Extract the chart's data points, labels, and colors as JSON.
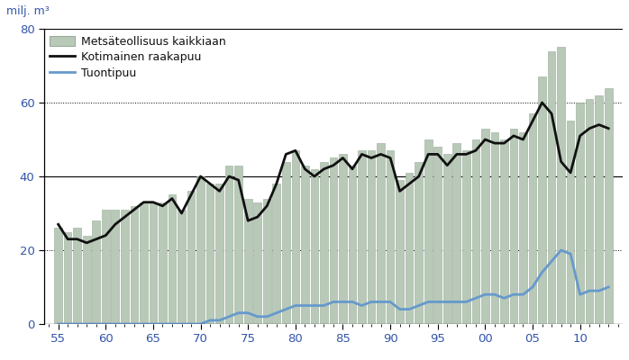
{
  "years": [
    1955,
    1956,
    1957,
    1958,
    1959,
    1960,
    1961,
    1962,
    1963,
    1964,
    1965,
    1966,
    1967,
    1968,
    1969,
    1970,
    1971,
    1972,
    1973,
    1974,
    1975,
    1976,
    1977,
    1978,
    1979,
    1980,
    1981,
    1982,
    1983,
    1984,
    1985,
    1986,
    1987,
    1988,
    1989,
    1990,
    1991,
    1992,
    1993,
    1994,
    1995,
    1996,
    1997,
    1998,
    1999,
    2000,
    2001,
    2002,
    2003,
    2004,
    2005,
    2006,
    2007,
    2008,
    2009,
    2010,
    2011,
    2012,
    2013
  ],
  "bars": [
    26,
    25,
    26,
    24,
    28,
    31,
    31,
    31,
    32,
    33,
    33,
    33,
    35,
    31,
    36,
    40,
    38,
    38,
    43,
    43,
    34,
    33,
    34,
    38,
    44,
    47,
    43,
    42,
    44,
    45,
    46,
    43,
    47,
    47,
    49,
    47,
    39,
    41,
    44,
    50,
    48,
    46,
    49,
    47,
    50,
    53,
    52,
    50,
    53,
    52,
    57,
    67,
    74,
    75,
    55,
    60,
    61,
    62,
    64
  ],
  "kotimainen": [
    27,
    23,
    23,
    22,
    23,
    24,
    27,
    29,
    31,
    33,
    33,
    32,
    34,
    30,
    35,
    40,
    38,
    36,
    40,
    39,
    28,
    29,
    32,
    38,
    46,
    47,
    42,
    40,
    42,
    43,
    45,
    42,
    46,
    45,
    46,
    45,
    36,
    38,
    40,
    46,
    46,
    43,
    46,
    46,
    47,
    50,
    49,
    49,
    51,
    50,
    55,
    60,
    57,
    44,
    41,
    51,
    53,
    54,
    53
  ],
  "tuontipuu": [
    0,
    0,
    0,
    0,
    0,
    0,
    0,
    0,
    0,
    0,
    0,
    0,
    0,
    0,
    0,
    0,
    1,
    1,
    2,
    3,
    3,
    2,
    2,
    3,
    4,
    5,
    5,
    5,
    5,
    6,
    6,
    6,
    5,
    6,
    6,
    6,
    4,
    4,
    5,
    6,
    6,
    6,
    6,
    6,
    7,
    8,
    8,
    7,
    8,
    8,
    10,
    14,
    17,
    20,
    19,
    8,
    9,
    9,
    10
  ],
  "bar_color": "#b8c9b8",
  "bar_edge_color": "#9aaa9a",
  "kotimainen_color": "#111111",
  "tuontipuu_color": "#6699cc",
  "ylabel": "milj. m³",
  "ylim": [
    0,
    80
  ],
  "yticks": [
    0,
    20,
    40,
    60,
    80
  ],
  "xtick_labels": [
    "55",
    "60",
    "65",
    "70",
    "75",
    "80",
    "85",
    "90",
    "95",
    "00",
    "05",
    "10"
  ],
  "xtick_positions": [
    1955,
    1960,
    1965,
    1970,
    1975,
    1980,
    1985,
    1990,
    1995,
    2000,
    2005,
    2010
  ],
  "legend_labels": [
    "Metsäteollisuus kaikkiaan",
    "Kotimainen raakapuu",
    "Tuontipuu"
  ],
  "background_color": "#ffffff",
  "tick_color": "#3355aa",
  "label_color": "#3355aa",
  "grid_dotted_at": [
    20,
    60
  ],
  "grid_solid_at": [
    40,
    80
  ],
  "xlim_left": 1953.5,
  "xlim_right": 2014.5
}
